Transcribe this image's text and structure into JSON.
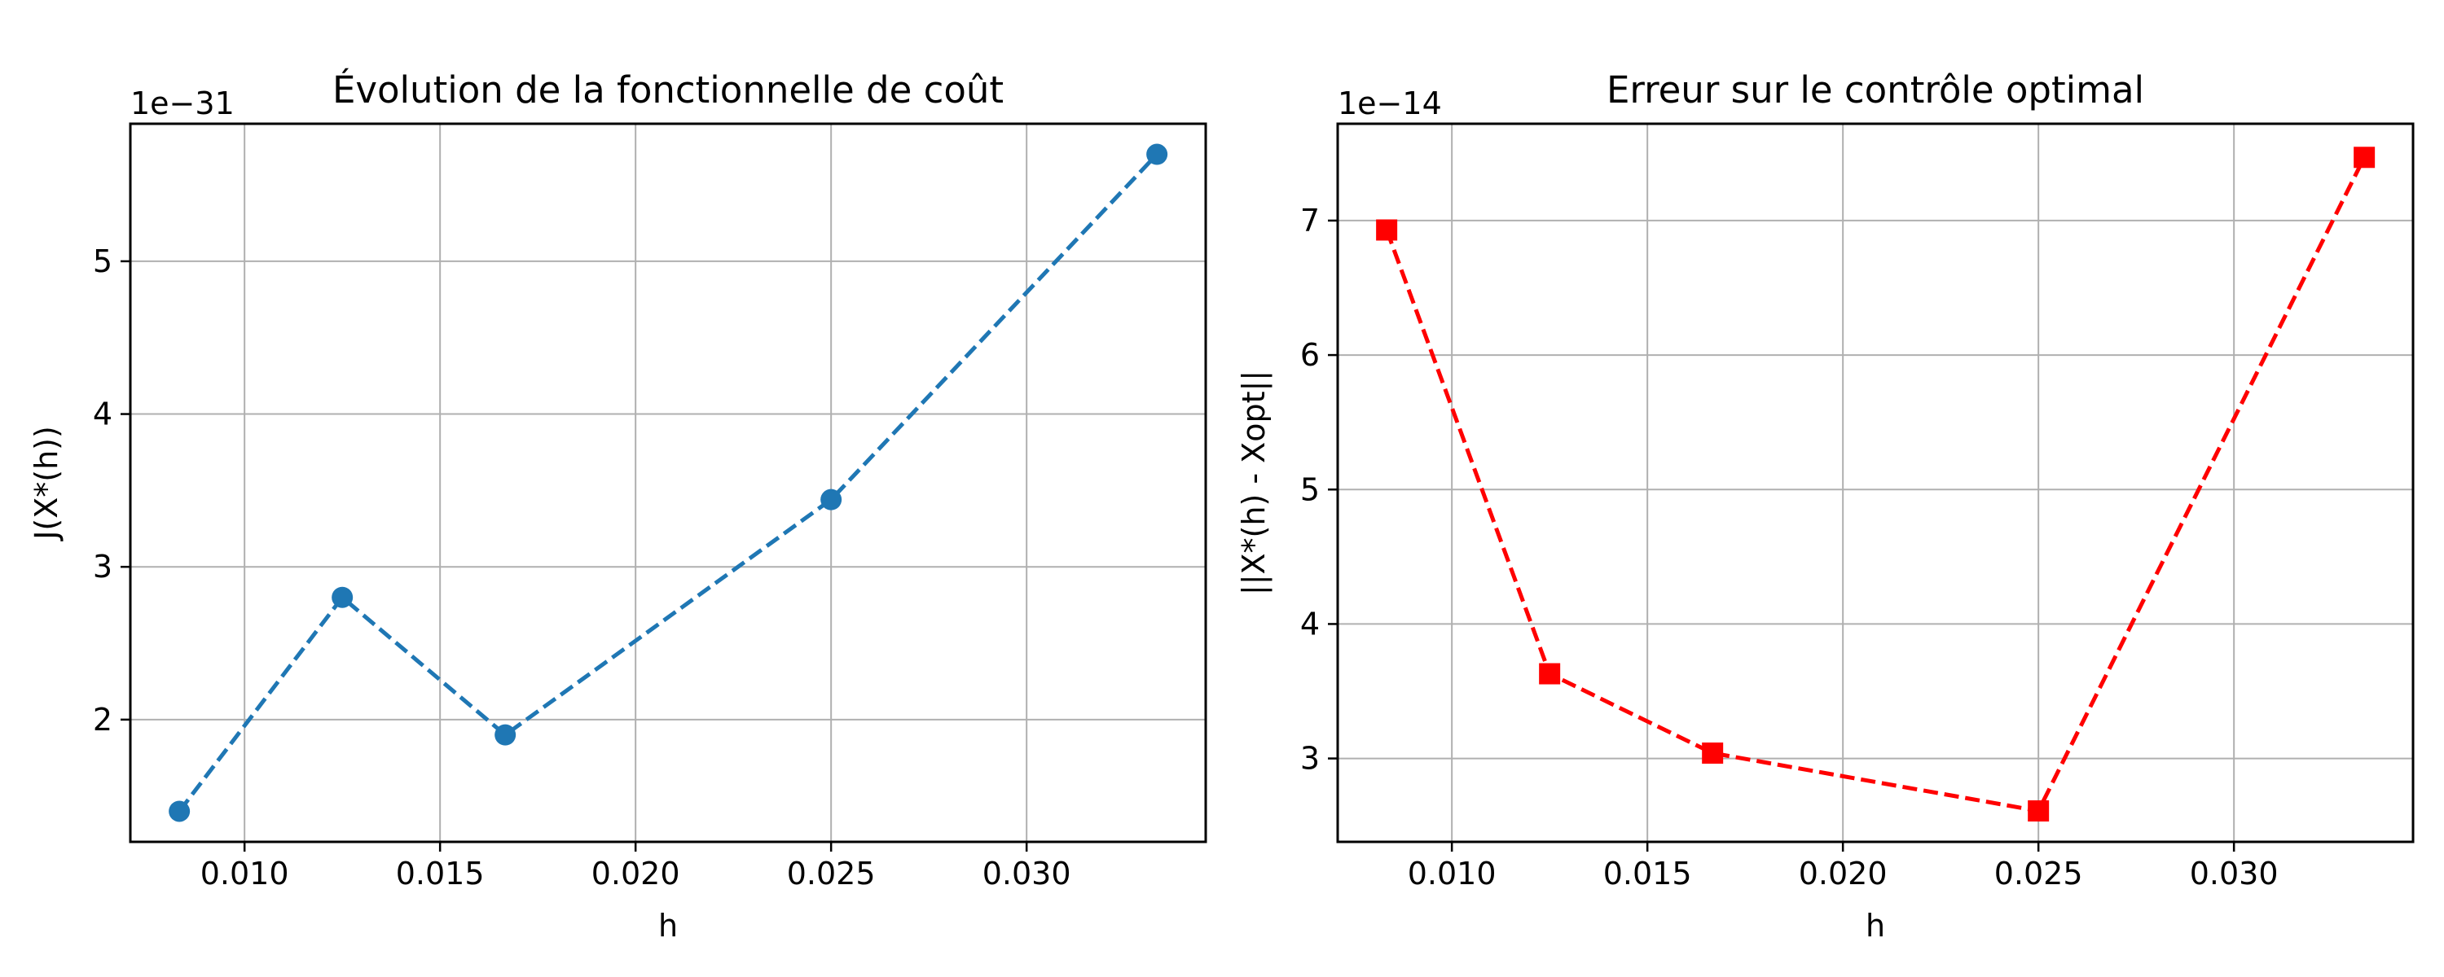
{
  "chart_data": [
    {
      "type": "line",
      "title": "Évolution de la fonctionnelle de coût",
      "xlabel": "h",
      "ylabel": "J(X*(h))",
      "offset_text": "1e−31",
      "xlim": [
        0.00708,
        0.03458
      ],
      "ylim": [
        1.2,
        5.9
      ],
      "xticks": [
        0.01,
        0.015,
        0.02,
        0.025,
        0.03
      ],
      "xtick_labels": [
        "0.010",
        "0.015",
        "0.020",
        "0.025",
        "0.030"
      ],
      "yticks": [
        2,
        3,
        4,
        5
      ],
      "ytick_labels": [
        "2",
        "3",
        "4",
        "5"
      ],
      "grid": true,
      "series": [
        {
          "x": [
            0.008333,
            0.0125,
            0.016667,
            0.025,
            0.033333
          ],
          "y": [
            1.4,
            2.8,
            1.9,
            3.44,
            5.7
          ],
          "color": "#1f77b4",
          "linestyle": "dashed",
          "marker": "circle"
        }
      ]
    },
    {
      "type": "line",
      "title": "Erreur sur le contrôle optimal",
      "xlabel": "h",
      "ylabel": "||X*(h) - Xopt||",
      "offset_text": "1e−14",
      "xlim": [
        0.00708,
        0.03458
      ],
      "ylim": [
        2.38,
        7.72
      ],
      "xticks": [
        0.01,
        0.015,
        0.02,
        0.025,
        0.03
      ],
      "xtick_labels": [
        "0.010",
        "0.015",
        "0.020",
        "0.025",
        "0.030"
      ],
      "yticks": [
        3,
        4,
        5,
        6,
        7
      ],
      "ytick_labels": [
        "3",
        "4",
        "5",
        "6",
        "7"
      ],
      "grid": true,
      "series": [
        {
          "x": [
            0.008333,
            0.0125,
            0.016667,
            0.025,
            0.033333
          ],
          "y": [
            6.93,
            3.63,
            3.04,
            2.61,
            7.47
          ],
          "color": "#ff0000",
          "linestyle": "dashed",
          "marker": "square"
        }
      ]
    }
  ]
}
